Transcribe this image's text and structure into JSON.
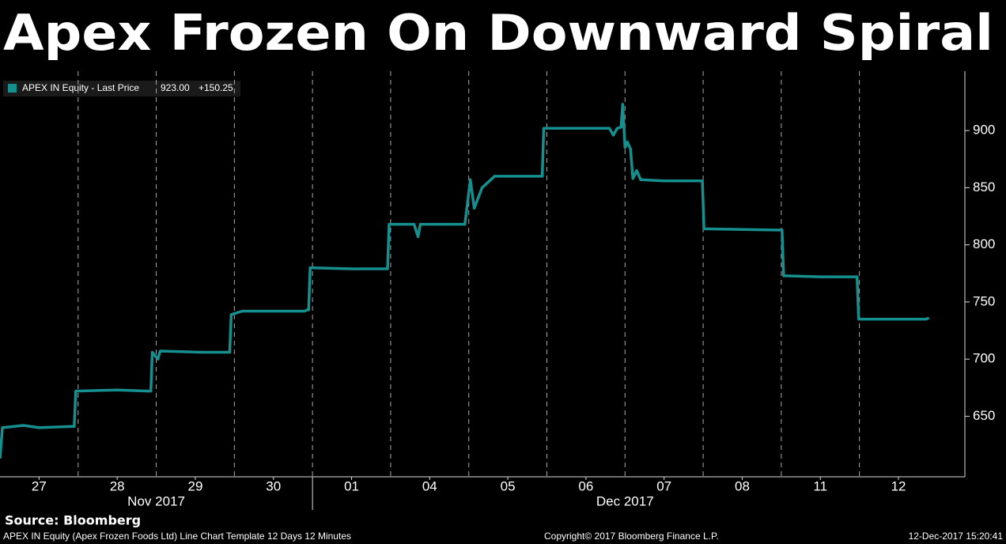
{
  "chart_data": {
    "type": "line",
    "title": "Apex Frozen On Downward Spiral",
    "legend_stats": [
      "923.00",
      "+150.25"
    ],
    "x": [
      0,
      0.03,
      0.3,
      0.5,
      0.9,
      0.95,
      0.97,
      1.5,
      1.9,
      1.93,
      1.95,
      2.02,
      2.05,
      2.6,
      2.9,
      2.94,
      2.96,
      3.1,
      3.9,
      3.93,
      3.95,
      3.97,
      4.5,
      4.93,
      4.96,
      4.98,
      5.3,
      5.35,
      5.38,
      5.9,
      5.95,
      6.02,
      6.07,
      6.17,
      6.33,
      6.9,
      6.94,
      6.96,
      7.5,
      7.8,
      7.85,
      7.9,
      7.95,
      7.97,
      8.0,
      8.03,
      8.07,
      8.1,
      8.15,
      8.2,
      8.5,
      8.97,
      8.99,
      9.01,
      9.9,
      10.01,
      10.03,
      10.5,
      10.97,
      10.99,
      11.5,
      11.85,
      11.89
    ],
    "series": [
      {
        "name": "APEX IN Equity - Last Price",
        "color": "#16908f",
        "values": [
          613,
          640,
          642,
          640,
          641,
          641,
          672,
          673,
          672,
          672,
          706,
          700,
          707,
          706,
          706,
          706,
          739,
          742,
          742,
          743,
          743,
          780,
          779,
          779,
          779,
          818,
          818,
          807,
          818,
          818,
          818,
          857,
          832,
          850,
          860,
          860,
          860,
          902,
          902,
          902,
          896,
          902,
          903,
          923,
          885,
          890,
          884,
          858,
          865,
          857,
          856,
          856,
          856,
          814,
          813,
          813,
          773,
          772,
          772,
          735,
          735,
          735,
          736
        ]
      }
    ],
    "xlim": [
      0,
      12.35
    ],
    "xticks": [
      {
        "value": 0.5,
        "label": "27"
      },
      {
        "value": 1.5,
        "label": "28"
      },
      {
        "value": 2.5,
        "label": "29"
      },
      {
        "value": 3.5,
        "label": "30"
      },
      {
        "value": 4.5,
        "label": "01"
      },
      {
        "value": 5.5,
        "label": "04"
      },
      {
        "value": 6.5,
        "label": "05"
      },
      {
        "value": 7.5,
        "label": "06"
      },
      {
        "value": 8.5,
        "label": "07"
      },
      {
        "value": 9.5,
        "label": "08"
      },
      {
        "value": 10.5,
        "label": "11"
      },
      {
        "value": 11.5,
        "label": "12"
      }
    ],
    "months": [
      {
        "value": 2,
        "label": "Nov 2017"
      },
      {
        "value": 8,
        "label": "Dec 2017"
      }
    ],
    "ylim": [
      597,
      952
    ],
    "yticks": [
      650,
      700,
      750,
      800,
      850,
      900
    ],
    "source": "Source: Bloomberg",
    "footer": [
      "APEX IN Equity (Apex Frozen Foods Ltd) Line Chart Template 12 Days 12 Minutes",
      "Copyright© 2017 Bloomberg Finance L.P.",
      "12-Dec-2017 15:20:41"
    ]
  }
}
